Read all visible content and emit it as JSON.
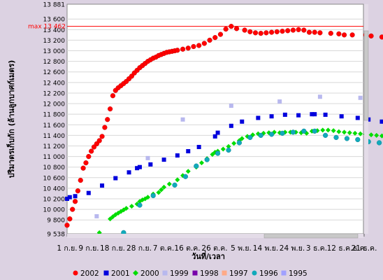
{
  "chart_data": {
    "type": "scatter",
    "ylabel": "ปริมาตรเก็บกัก (ล้านลูกบาศก์เมตร)",
    "xlabel": "วันที่/เวลา",
    "ylim": [
      9538,
      13881
    ],
    "y_ticks": [
      9538,
      9800,
      10000,
      10200,
      10400,
      10600,
      10800,
      11000,
      11200,
      11400,
      11600,
      11800,
      12000,
      12200,
      12400,
      12600,
      12800,
      13000,
      13200,
      13400,
      13600,
      13881
    ],
    "y_tick_labels": [
      "9 538",
      "9 800",
      "10 000",
      "10 200",
      "10 400",
      "10 600",
      "10 800",
      "11 000",
      "11 200",
      "11 400",
      "11 600",
      "11 800",
      "12 000",
      "12 200",
      "12 400",
      "12 600",
      "12 800",
      "13 000",
      "13 200",
      "13 400",
      "13 600",
      "13 881"
    ],
    "x_categories": [
      "1 ก.ย.",
      "9 ก.ย.",
      "18 ก.ย.",
      "28 ก.ย.",
      "7 ต.ค.",
      "16 ต.ค.",
      "26 ต.ค.",
      "5 พ.ย.",
      "14 พ.ย.",
      "24 พ.ย.",
      "3 ธ.ค.",
      "12 ธ.ค.",
      "21 ธ.ค."
    ],
    "x_tick_labels": [
      "1 ก.ย.",
      "9 ก.ย.",
      "18 ก.ย.",
      "28 ก.ย.",
      "7 ต.ค.",
      "16 ต.ค.",
      "26 ต.ค.",
      "5 พ.ย.",
      "14 พ.ย.",
      "24 พ.ย.",
      "3 ธ.ค.",
      "12 ธ.ค.",
      "21 ธ.ค.",
      "ธ.ค."
    ],
    "max_line": {
      "label": "max 13 462",
      "value": 13462
    },
    "grid": true,
    "legend_position": "bottom",
    "series": [
      {
        "name": "2002",
        "color": "#ff0000",
        "marker": "circle",
        "x": [
          "1 ก.ย.",
          "2 ก.ย.",
          "3 ก.ย.",
          "4 ก.ย.",
          "5 ก.ย.",
          "6 ก.ย.",
          "7 ก.ย.",
          "8 ก.ย.",
          "9 ก.ย.",
          "10 ก.ย.",
          "11 ก.ย.",
          "12 ก.ย.",
          "13 ก.ย.",
          "14 ก.ย.",
          "15 ก.ย.",
          "16 ก.ย.",
          "17 ก.ย.",
          "18 ก.ย.",
          "19 ก.ย.",
          "20 ก.ย.",
          "21 ก.ย.",
          "22 ก.ย.",
          "23 ก.ย.",
          "24 ก.ย.",
          "25 ก.ย.",
          "26 ก.ย.",
          "27 ก.ย.",
          "28 ก.ย.",
          "29 ก.ย.",
          "30 ก.ย.",
          "1 ต.ค.",
          "2 ต.ค.",
          "3 ต.ค.",
          "4 ต.ค.",
          "5 ต.ค.",
          "6 ต.ค.",
          "7 ต.ค.",
          "8 ต.ค.",
          "9 ต.ค.",
          "10 ต.ค.",
          "11 ต.ค.",
          "12 ต.ค.",
          "14 ต.ค.",
          "16 ต.ค.",
          "18 ต.ค.",
          "20 ต.ค.",
          "22 ต.ค.",
          "24 ต.ค.",
          "26 ต.ค.",
          "28 ต.ค.",
          "30 ต.ค.",
          "1 พ.ย.",
          "3 พ.ย.",
          "6 พ.ย.",
          "8 พ.ย.",
          "10 พ.ย.",
          "12 พ.ย.",
          "14 พ.ย.",
          "16 พ.ย.",
          "18 พ.ย.",
          "20 พ.ย.",
          "22 พ.ย.",
          "24 พ.ย.",
          "26 พ.ย.",
          "28 พ.ย.",
          "30 พ.ย.",
          "2 ธ.ค.",
          "4 ธ.ค.",
          "8 ธ.ค.",
          "11 ธ.ค.",
          "13 ธ.ค.",
          "16 ธ.ค.",
          "21 ธ.ค.",
          "23 ธ.ค.",
          "27 ธ.ค."
        ],
        "y": [
          9700,
          9820,
          10000,
          10150,
          10350,
          10550,
          10780,
          10880,
          11000,
          11100,
          11180,
          11240,
          11300,
          11380,
          11550,
          11700,
          11900,
          12150,
          12250,
          12300,
          12340,
          12380,
          12420,
          12470,
          12520,
          12580,
          12630,
          12680,
          12720,
          12760,
          12800,
          12830,
          12860,
          12880,
          12910,
          12930,
          12950,
          12970,
          12980,
          12990,
          13000,
          13010,
          13030,
          13050,
          13080,
          13100,
          13140,
          13200,
          13250,
          13310,
          13410,
          13462,
          13420,
          13390,
          13360,
          13340,
          13330,
          13340,
          13350,
          13360,
          13370,
          13380,
          13390,
          13400,
          13390,
          13350,
          13350,
          13340,
          13330,
          13320,
          13300,
          13300,
          13300,
          13280,
          13260
        ]
      },
      {
        "name": "2001",
        "color": "#0000dd",
        "marker": "square",
        "x": [
          "1 ก.ย.",
          "2 ก.ย.",
          "4 ก.ย.",
          "9 ก.ย.",
          "14 ก.ย.",
          "19 ก.ย.",
          "24 ก.ย.",
          "27 ก.ย.",
          "28 ก.ย.",
          "2 ต.ค.",
          "7 ต.ค.",
          "12 ต.ค.",
          "16 ต.ค.",
          "20 ต.ค.",
          "26 ต.ค.",
          "27 ต.ค.",
          "1 พ.ย.",
          "5 พ.ย.",
          "11 พ.ย.",
          "16 พ.ย.",
          "21 พ.ย.",
          "26 พ.ย.",
          "1 ธ.ค.",
          "2 ธ.ค.",
          "6 ธ.ค.",
          "12 ธ.ค.",
          "18 ธ.ค.",
          "22 ธ.ค.",
          "27 ธ.ค."
        ],
        "y": [
          10200,
          10230,
          10250,
          10310,
          10450,
          10590,
          10700,
          10780,
          10800,
          10850,
          10940,
          11020,
          11100,
          11180,
          11380,
          11450,
          11580,
          11660,
          11730,
          11760,
          11790,
          11780,
          11800,
          11800,
          11790,
          11760,
          11730,
          11700,
          11660
        ]
      },
      {
        "name": "2000",
        "color": "#00dd00",
        "marker": "diamond",
        "x": [
          "13 ก.ย.",
          "17 ก.ย.",
          "18 ก.ย.",
          "19 ก.ย.",
          "20 ก.ย.",
          "21 ก.ย.",
          "22 ก.ย.",
          "23 ก.ย.",
          "25 ก.ย.",
          "27 ก.ย.",
          "28 ก.ย.",
          "29 ก.ย.",
          "30 ก.ย.",
          "1 ต.ค.",
          "3 ต.ค.",
          "5 ต.ค.",
          "6 ต.ค.",
          "7 ต.ค.",
          "9 ต.ค.",
          "12 ต.ค.",
          "14 ต.ค.",
          "16 ต.ค.",
          "19 ต.ค.",
          "21 ต.ค.",
          "23 ต.ค.",
          "25 ต.ค.",
          "26 ต.ค.",
          "27 ต.ค.",
          "29 ต.ค.",
          "31 ต.ค.",
          "2 พ.ย.",
          "4 พ.ย.",
          "5 พ.ย.",
          "7 พ.ย.",
          "9 พ.ย.",
          "11 พ.ย.",
          "13 พ.ย.",
          "15 พ.ย.",
          "17 พ.ย.",
          "19 พ.ย.",
          "21 พ.ย.",
          "23 พ.ย.",
          "25 พ.ย.",
          "27 พ.ย.",
          "29 พ.ย.",
          "1 ธ.ค.",
          "3 ธ.ค.",
          "5 ธ.ค.",
          "7 ธ.ค.",
          "9 ธ.ค.",
          "11 ธ.ค.",
          "13 ธ.ค.",
          "15 ธ.ค.",
          "17 ธ.ค.",
          "19 ธ.ค.",
          "21 ธ.ค.",
          "23 ธ.ค.",
          "25 ธ.ค.",
          "27 ธ.ค.",
          "29 ธ.ค."
        ],
        "y": [
          9560,
          9820,
          9860,
          9900,
          9930,
          9960,
          9990,
          10020,
          10060,
          10100,
          10150,
          10180,
          10200,
          10230,
          10290,
          10320,
          10370,
          10420,
          10480,
          10560,
          10640,
          10720,
          10800,
          10880,
          10960,
          11040,
          11080,
          11100,
          11140,
          11190,
          11250,
          11300,
          11340,
          11380,
          11410,
          11430,
          11440,
          11450,
          11460,
          11450,
          11460,
          11460,
          11460,
          11450,
          11440,
          11480,
          11490,
          11500,
          11500,
          11490,
          11470,
          11460,
          11450,
          11440,
          11430,
          11420,
          11410,
          11400,
          11390,
          11370
        ]
      },
      {
        "name": "1999",
        "color": "#b8b8ee",
        "marker": "square",
        "x": [
          "12 ก.ย.",
          "1 ต.ค.",
          "14 ต.ค.",
          "1 พ.ย.",
          "19 พ.ย.",
          "4 ธ.ค.",
          "19 ธ.ค."
        ],
        "y": [
          9870,
          10970,
          11700,
          11960,
          12040,
          12130,
          12110
        ]
      },
      {
        "name": "1998",
        "color": "#7700aa",
        "marker": "square",
        "x": [],
        "y": []
      },
      {
        "name": "1997",
        "color": "#ffaa88",
        "marker": "square",
        "x": [],
        "y": []
      },
      {
        "name": "1996",
        "color": "#11aabb",
        "marker": "circle",
        "x": [
          "22 ก.ย.",
          "28 ก.ย.",
          "3 ต.ค.",
          "11 ต.ค.",
          "15 ต.ค.",
          "19 ต.ค.",
          "23 ต.ค.",
          "27 ต.ค.",
          "31 ต.ค.",
          "4 พ.ย.",
          "8 พ.ย.",
          "12 พ.ย.",
          "16 พ.ย.",
          "20 พ.ย.",
          "24 พ.ย.",
          "28 พ.ย.",
          "2 ธ.ค.",
          "6 ธ.ค.",
          "10 ธ.ค.",
          "14 ธ.ค.",
          "18 ธ.ค.",
          "22 ธ.ค.",
          "26 ธ.ค."
        ],
        "y": [
          9560,
          10080,
          10260,
          10460,
          10620,
          10820,
          10940,
          11060,
          11120,
          11260,
          11360,
          11400,
          11420,
          11440,
          11460,
          11480,
          11480,
          11400,
          11360,
          11340,
          11320,
          11280,
          11260
        ]
      },
      {
        "name": "1995",
        "color": "#a0a0ff",
        "marker": "square",
        "x": [],
        "y": []
      }
    ]
  }
}
